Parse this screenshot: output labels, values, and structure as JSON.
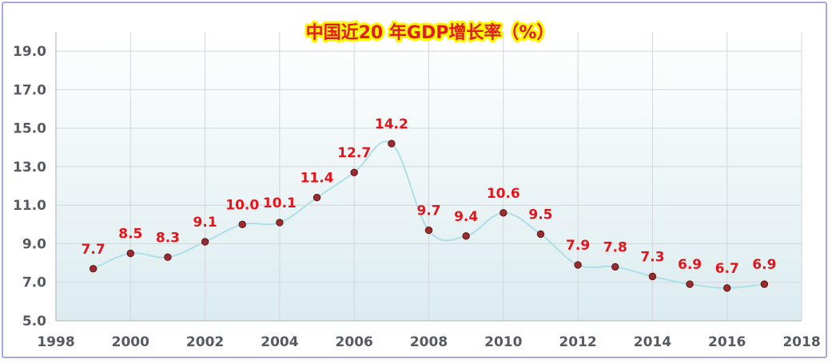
{
  "chart_data": {
    "type": "line",
    "title": "中国近20 年GDP增长率（%）",
    "xlabel": "",
    "ylabel": "",
    "x": [
      1999,
      2000,
      2001,
      2002,
      2003,
      2004,
      2005,
      2006,
      2007,
      2008,
      2009,
      2010,
      2011,
      2012,
      2013,
      2014,
      2015,
      2016,
      2017
    ],
    "values": [
      7.7,
      8.5,
      8.3,
      9.1,
      10.0,
      10.1,
      11.4,
      12.7,
      14.2,
      9.7,
      9.4,
      10.6,
      9.5,
      7.9,
      7.8,
      7.3,
      6.9,
      6.7,
      6.9
    ],
    "value_labels": [
      "7.7",
      "8.5",
      "8.3",
      "9.1",
      "10.0",
      "10.1",
      "11.4",
      "12.7",
      "14.2",
      "9.7",
      "9.4",
      "10.6",
      "9.5",
      "7.9",
      "7.8",
      "7.3",
      "6.9",
      "6.7",
      "6.9"
    ],
    "xlim": [
      1998,
      2018
    ],
    "ylim": [
      5,
      20
    ],
    "x_ticks": [
      "1998",
      "2000",
      "2002",
      "2004",
      "2006",
      "2008",
      "2010",
      "2012",
      "2014",
      "2016",
      "2018"
    ],
    "y_ticks": [
      "5.0",
      "7.0",
      "9.0",
      "11.0",
      "13.0",
      "15.0",
      "17.0",
      "19.0"
    ],
    "grid": true,
    "colors": {
      "line": "#aedfe7",
      "marker_fill": "#9a2b2e",
      "marker_stroke": "#5a1416",
      "label": "#e5141b",
      "title": "#e31b1b",
      "title_glow": "#fff700",
      "frame": "#a7a7e3",
      "plot_bg_top": "#ffffff",
      "plot_bg_bottom": "#dcecef"
    }
  }
}
